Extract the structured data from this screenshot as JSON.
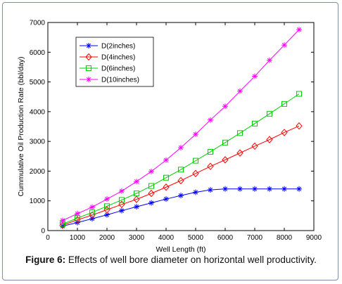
{
  "chart_data": {
    "type": "line",
    "ylabel": "Cummulative Oil Production Rate (bbl/day)",
    "xlabel": "Well Length (ft)",
    "xlim": [
      0,
      9000
    ],
    "ylim": [
      0,
      7000
    ],
    "x_ticks": [
      0,
      1000,
      2000,
      3000,
      4000,
      5000,
      6000,
      7000,
      8000,
      9000
    ],
    "y_ticks": [
      0,
      1000,
      2000,
      3000,
      4000,
      5000,
      6000,
      7000
    ],
    "grid": false,
    "legend_position": "top-left",
    "x": [
      500,
      1000,
      1500,
      2000,
      2500,
      3000,
      3500,
      4000,
      4500,
      5000,
      5500,
      6000,
      6500,
      7000,
      7500,
      8000,
      8500
    ],
    "series": [
      {
        "name": "D(2inches)",
        "color": "#0000ff",
        "marker": "star",
        "values": [
          150,
          270,
          400,
          530,
          670,
          800,
          930,
          1060,
          1180,
          1290,
          1370,
          1400,
          1400,
          1400,
          1400,
          1400,
          1400
        ]
      },
      {
        "name": "D(4inches)",
        "color": "#ff0000",
        "marker": "diamond",
        "values": [
          180,
          360,
          520,
          700,
          880,
          1050,
          1250,
          1460,
          1680,
          1920,
          2160,
          2380,
          2610,
          2840,
          3060,
          3300,
          3520
        ]
      },
      {
        "name": "D(6inches)",
        "color": "#00cc00",
        "marker": "square",
        "values": [
          220,
          420,
          610,
          820,
          1030,
          1250,
          1500,
          1780,
          2050,
          2350,
          2650,
          2960,
          3280,
          3600,
          3930,
          4260,
          4600
        ]
      },
      {
        "name": "D(10inches)",
        "color": "#ff00ff",
        "marker": "star",
        "values": [
          340,
          570,
          790,
          1060,
          1330,
          1650,
          1990,
          2370,
          2790,
          3240,
          3720,
          4180,
          4690,
          5190,
          5730,
          6240,
          6760
        ]
      }
    ]
  },
  "caption": {
    "label": "Figure 6:",
    "text": " Effects of well bore diameter on horizontal well productivity."
  }
}
